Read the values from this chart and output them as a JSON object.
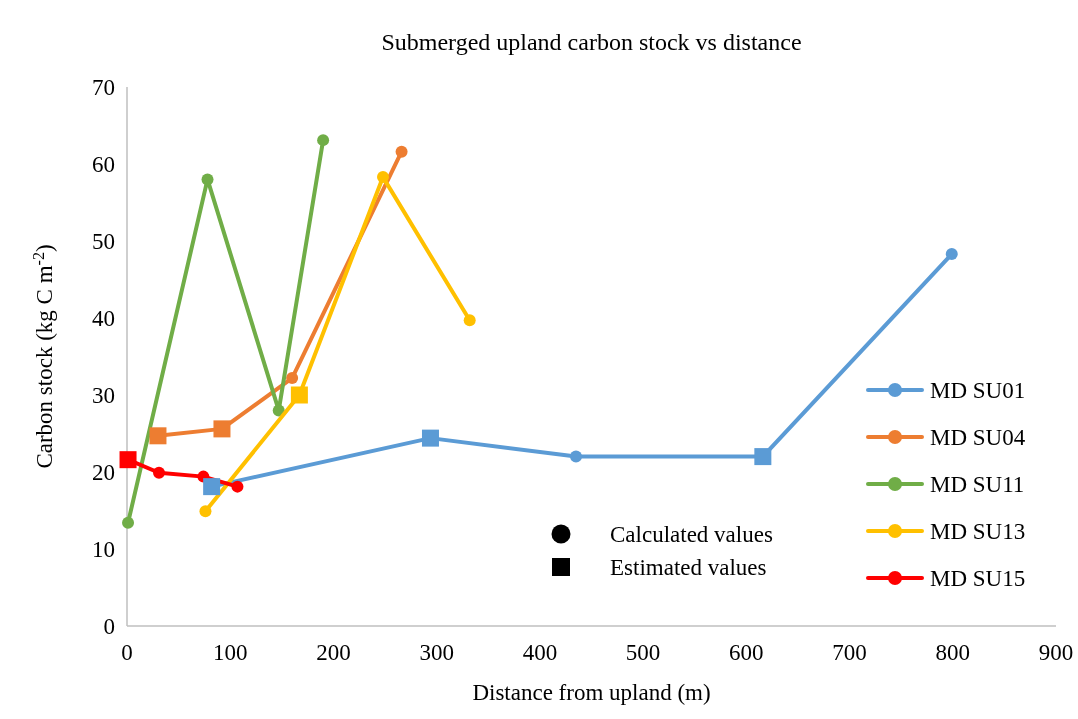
{
  "chart_data": {
    "type": "line",
    "title": "Submerged upland carbon stock vs distance",
    "xlabel": "Distance from upland (m)",
    "ylabel": "Carbon stock (kg C m$^{-2}$)",
    "xlim": [
      0,
      900
    ],
    "xticks": [
      0,
      100,
      200,
      300,
      400,
      500,
      600,
      700,
      800,
      900
    ],
    "ylim": [
      0,
      70
    ],
    "yticks": [
      0,
      10,
      20,
      30,
      40,
      50,
      60,
      70
    ],
    "grid": false,
    "legend": "right",
    "marker": "circle",
    "annotations": [
      "Calculated values",
      "Estimated values"
    ],
    "series": [
      {
        "name": "MD SU01",
        "color": "#5b9bd5",
        "x": [
          82,
          294,
          435,
          616,
          799
        ],
        "values": [
          18.1,
          24.4,
          22.0,
          22.0,
          48.3
        ]
      },
      {
        "name": "MD SU04",
        "color": "#ed7d31",
        "x": [
          30,
          92,
          160,
          266
        ],
        "values": [
          24.7,
          25.6,
          32.2,
          61.6
        ]
      },
      {
        "name": "MD SU11",
        "color": "#70ad47",
        "x": [
          1,
          78,
          147,
          190
        ],
        "values": [
          13.4,
          58.0,
          28.0,
          63.1
        ]
      },
      {
        "name": "MD SU13",
        "color": "#ffc000",
        "x": [
          76,
          167,
          248,
          332
        ],
        "values": [
          14.9,
          30.0,
          58.3,
          39.7
        ]
      },
      {
        "name": "MD SU15",
        "color": "#ff0000",
        "x": [
          1,
          31,
          74,
          107
        ],
        "values": [
          21.6,
          19.9,
          19.4,
          18.1
        ]
      },
      {
        "type": "scatter",
        "marker": "square",
        "x": [
          82,
          294,
          616,
          30,
          92,
          167,
          1
        ],
        "values": [
          18.1,
          24.4,
          22.0,
          24.7,
          25.6,
          30.0,
          21.6
        ],
        "colors": [
          "#5b9bd5",
          "#5b9bd5",
          "#5b9bd5",
          "#ed7d31",
          "#ed7d31",
          "#ffc000",
          "#ff0000"
        ]
      }
    ]
  }
}
